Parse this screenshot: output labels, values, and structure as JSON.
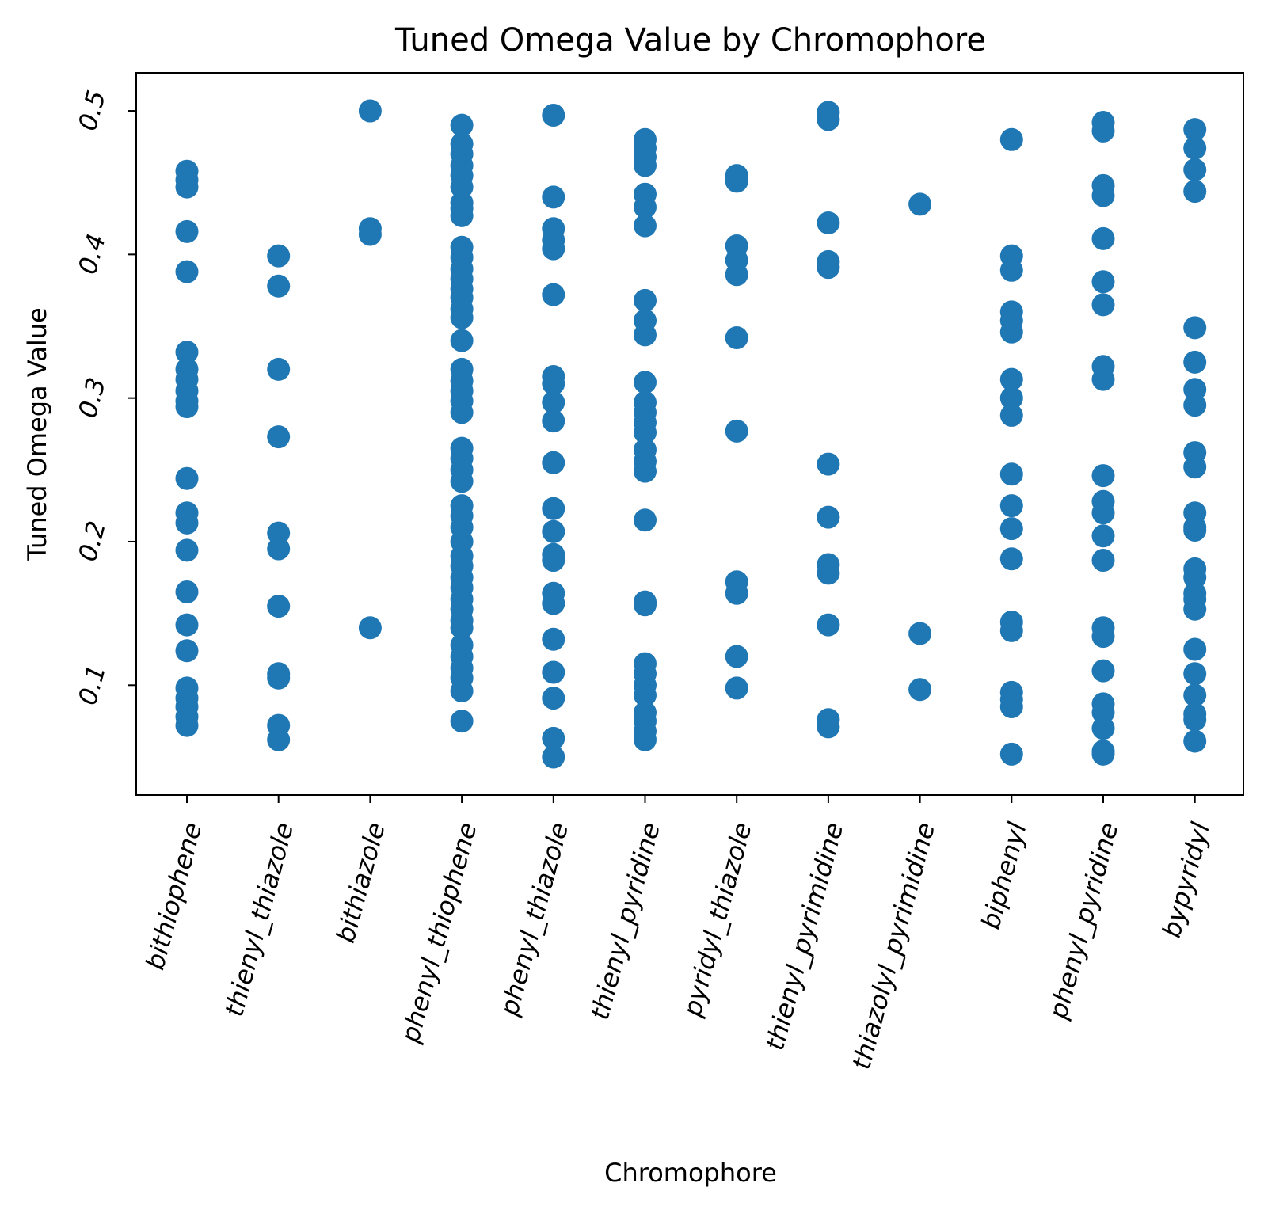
{
  "chart_data": {
    "type": "scatter",
    "title": "Tuned Omega Value by Chromophore",
    "xlabel": "Chromophore",
    "ylabel": "Tuned Omega Value",
    "ylim": [
      0.0235,
      0.5265
    ],
    "yticks": [
      0.1,
      0.2,
      0.3,
      0.4,
      0.5
    ],
    "ytick_labels": [
      "0.1",
      "0.2",
      "0.3",
      "0.4",
      "0.5"
    ],
    "grid": false,
    "marker_color": "#1f77b4",
    "categories": [
      "bithiophene",
      "thienyl_thiazole",
      "bithiazole",
      "phenyl_thiophene",
      "phenyl_thiazole",
      "thienyl_pyridine",
      "pyridyl_thiazole",
      "thienyl_pyrimidine",
      "thiazolyl_pyrimidine",
      "biphenyl",
      "phenyl_pyridine",
      "bypyridyl"
    ],
    "points": {
      "bithiophene": [
        0.458,
        0.452,
        0.447,
        0.416,
        0.388,
        0.332,
        0.32,
        0.313,
        0.305,
        0.298,
        0.294,
        0.244,
        0.22,
        0.213,
        0.194,
        0.165,
        0.142,
        0.124,
        0.098,
        0.091,
        0.085,
        0.078,
        0.072
      ],
      "thienyl_thiazole": [
        0.399,
        0.378,
        0.32,
        0.273,
        0.206,
        0.195,
        0.155,
        0.108,
        0.105,
        0.072,
        0.062
      ],
      "bithiazole": [
        0.5,
        0.418,
        0.414,
        0.14
      ],
      "phenyl_thiophene": [
        0.49,
        0.477,
        0.47,
        0.462,
        0.455,
        0.447,
        0.436,
        0.432,
        0.427,
        0.405,
        0.398,
        0.39,
        0.383,
        0.376,
        0.37,
        0.362,
        0.356,
        0.34,
        0.32,
        0.312,
        0.305,
        0.298,
        0.29,
        0.265,
        0.258,
        0.25,
        0.242,
        0.225,
        0.218,
        0.21,
        0.2,
        0.19,
        0.183,
        0.175,
        0.168,
        0.16,
        0.153,
        0.145,
        0.14,
        0.128,
        0.12,
        0.112,
        0.105,
        0.096,
        0.075
      ],
      "phenyl_thiazole": [
        0.497,
        0.44,
        0.418,
        0.41,
        0.404,
        0.372,
        0.315,
        0.31,
        0.297,
        0.284,
        0.255,
        0.223,
        0.207,
        0.191,
        0.187,
        0.164,
        0.157,
        0.132,
        0.109,
        0.091,
        0.063,
        0.05
      ],
      "thienyl_pyridine": [
        0.48,
        0.474,
        0.468,
        0.462,
        0.442,
        0.433,
        0.42,
        0.368,
        0.354,
        0.344,
        0.311,
        0.297,
        0.29,
        0.283,
        0.276,
        0.264,
        0.256,
        0.249,
        0.215,
        0.158,
        0.156,
        0.115,
        0.108,
        0.1,
        0.093,
        0.081,
        0.075,
        0.068,
        0.062
      ],
      "pyridyl_thiazole": [
        0.455,
        0.451,
        0.406,
        0.396,
        0.386,
        0.342,
        0.277,
        0.172,
        0.164,
        0.12,
        0.098
      ],
      "thienyl_pyrimidine": [
        0.499,
        0.494,
        0.422,
        0.395,
        0.391,
        0.254,
        0.217,
        0.184,
        0.178,
        0.142,
        0.076,
        0.071
      ],
      "thiazolyl_pyrimidine": [
        0.435,
        0.136,
        0.097
      ],
      "biphenyl": [
        0.48,
        0.399,
        0.389,
        0.36,
        0.354,
        0.346,
        0.313,
        0.3,
        0.288,
        0.247,
        0.225,
        0.209,
        0.188,
        0.144,
        0.138,
        0.095,
        0.09,
        0.085,
        0.052
      ],
      "phenyl_pyridine": [
        0.492,
        0.486,
        0.448,
        0.441,
        0.411,
        0.381,
        0.365,
        0.322,
        0.313,
        0.246,
        0.228,
        0.22,
        0.204,
        0.187,
        0.14,
        0.134,
        0.11,
        0.087,
        0.081,
        0.07,
        0.054,
        0.052
      ],
      "bypyridyl": [
        0.487,
        0.474,
        0.459,
        0.444,
        0.349,
        0.325,
        0.306,
        0.295,
        0.262,
        0.252,
        0.22,
        0.21,
        0.208,
        0.181,
        0.175,
        0.164,
        0.16,
        0.153,
        0.125,
        0.108,
        0.093,
        0.08,
        0.076,
        0.061
      ]
    }
  }
}
